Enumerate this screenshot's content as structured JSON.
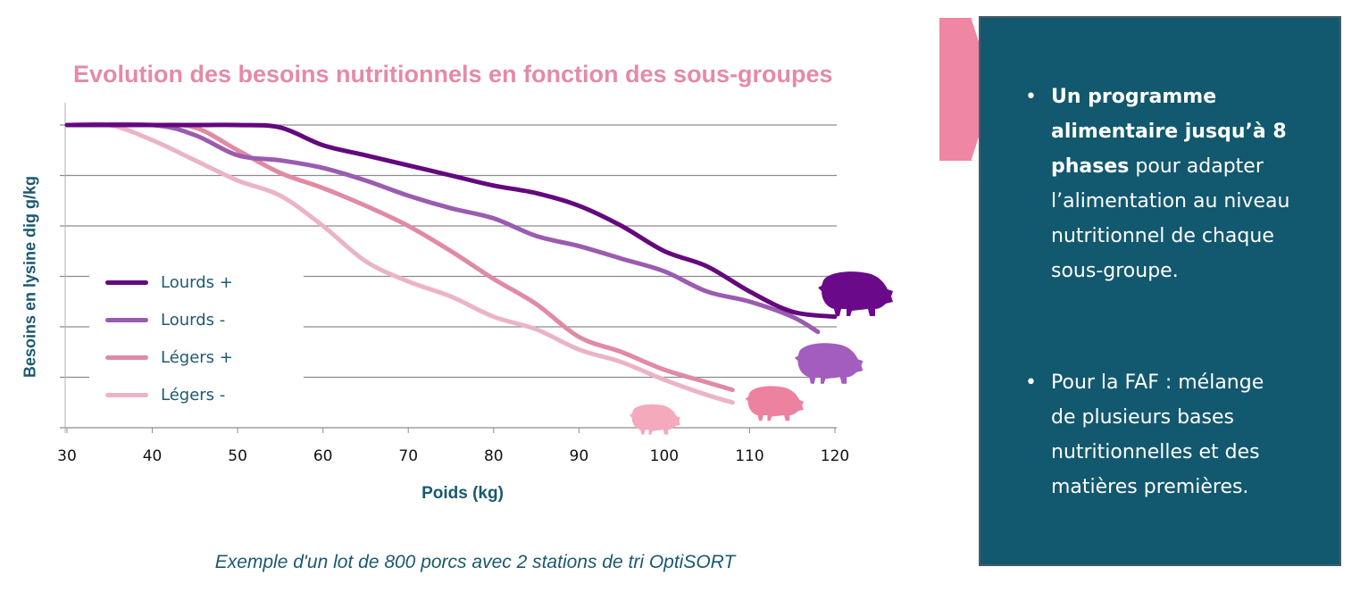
{
  "chart_data": {
    "type": "line",
    "title": "Evolution des besoins nutritionnels en fonction des sous-groupes",
    "xlabel": "Poids (kg)",
    "ylabel": "Besoins en lysine dig g/kg",
    "xlim": [
      30,
      120
    ],
    "ylim": [
      0,
      6
    ],
    "x_ticks": [
      "30",
      "40",
      "50",
      "60",
      "70",
      "80",
      "90",
      "100",
      "110",
      "120"
    ],
    "y_tick_labels_shown": false,
    "y_units_note": "relative scale (gridline index), no y tick labels printed",
    "grid": true,
    "legend_position": "left-middle",
    "series": [
      {
        "name": "Lourds +",
        "color": "#64087e",
        "x": [
          30,
          45,
          50,
          55,
          60,
          65,
          70,
          75,
          80,
          85,
          90,
          95,
          100,
          105,
          110,
          115,
          120
        ],
        "y": [
          6,
          6,
          6,
          5.95,
          5.6,
          5.4,
          5.2,
          5.0,
          4.8,
          4.65,
          4.4,
          4.0,
          3.5,
          3.2,
          2.7,
          2.3,
          2.2
        ]
      },
      {
        "name": "Lourds -",
        "color": "#9a5cb0",
        "x": [
          30,
          40,
          45,
          50,
          55,
          60,
          65,
          70,
          75,
          80,
          85,
          90,
          95,
          100,
          105,
          110,
          115,
          118
        ],
        "y": [
          6,
          6,
          5.8,
          5.4,
          5.3,
          5.15,
          4.9,
          4.6,
          4.35,
          4.15,
          3.8,
          3.6,
          3.35,
          3.1,
          2.7,
          2.5,
          2.2,
          1.9
        ]
      },
      {
        "name": "Légers +",
        "color": "#e08aa3",
        "x": [
          30,
          40,
          45,
          50,
          55,
          60,
          65,
          70,
          75,
          80,
          85,
          90,
          95,
          100,
          105,
          108
        ],
        "y": [
          6,
          6,
          5.95,
          5.5,
          5.05,
          4.75,
          4.4,
          4.0,
          3.5,
          2.95,
          2.45,
          1.8,
          1.5,
          1.15,
          0.9,
          0.75
        ]
      },
      {
        "name": "Légers -",
        "color": "#ebb4c6",
        "x": [
          30,
          35,
          40,
          45,
          50,
          55,
          60,
          65,
          70,
          75,
          80,
          85,
          90,
          95,
          100,
          105,
          108
        ],
        "y": [
          6,
          6,
          5.7,
          5.3,
          4.9,
          4.6,
          4.0,
          3.3,
          2.9,
          2.6,
          2.2,
          1.95,
          1.55,
          1.3,
          0.95,
          0.65,
          0.5
        ]
      }
    ],
    "annotations": [
      {
        "type": "pig-icon",
        "series": "Lourds +",
        "color": "#6a0a8a"
      },
      {
        "type": "pig-icon",
        "series": "Lourds -",
        "color": "#a35dbf"
      },
      {
        "type": "pig-icon",
        "series": "Légers +",
        "color": "#ec829f"
      },
      {
        "type": "pig-icon",
        "series": "Légers -",
        "color": "#f4a9bd"
      }
    ]
  },
  "caption": "Exemple d'un lot de 800 porcs avec 2 stations de tri OptiSORT",
  "panel": {
    "background": "#12586f",
    "arrow_color": "#ee86a4",
    "bullets": [
      {
        "bold": "Un programme alimentaire jusqu’à 8 phases",
        "text": " pour adapter l’alimentation au niveau nutritionnel de chaque sous-groupe."
      },
      {
        "bold": "",
        "text": "Pour la FAF : mélange de plusieurs bases nutritionnelles et des matières premières."
      }
    ]
  },
  "colors": {
    "title": "#e58aa6",
    "axis_text": "#1a5870",
    "grid": "#8c8c8c"
  }
}
